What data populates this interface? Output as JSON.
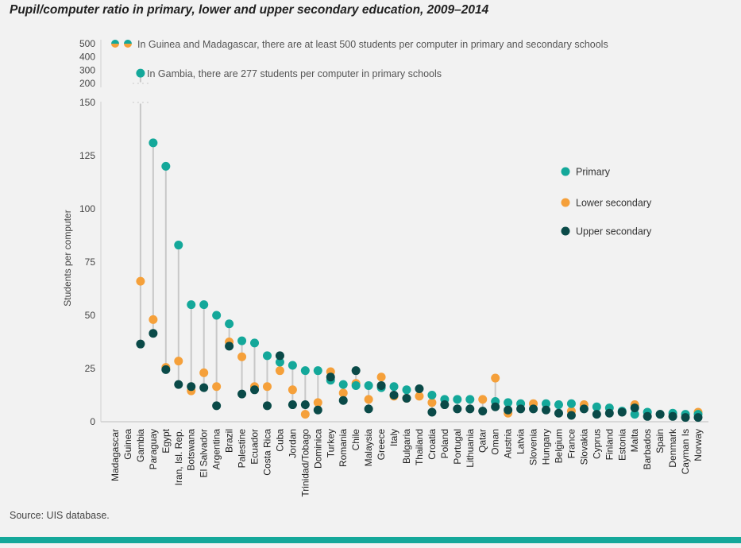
{
  "title": "Pupil/computer ratio in primary, lower and upper secondary education, 2009–2014",
  "source": "Source: UIS database.",
  "chart_data": {
    "type": "scatter",
    "title": "Pupil/computer ratio in primary, lower and upper secondary education, 2009–2014",
    "ylabel": "Students per computer",
    "xlabel": "",
    "ylim": [
      0,
      500
    ],
    "y_axis_break": [
      150,
      200
    ],
    "yticks_lower": [
      0,
      25,
      50,
      75,
      100,
      125,
      150
    ],
    "yticks_upper": [
      200,
      300,
      400,
      500
    ],
    "grid": false,
    "legend_placement": "right",
    "annotations": [
      "In Guinea and Madagascar, there are at least 500 students per computer in primary and secondary schools",
      "In Gambia, there are 277 students per computer in primary schools"
    ],
    "categories": [
      "Madagascar",
      "Guinea",
      "Gambia",
      "Paraguay",
      "Egypt",
      "Iran, Isl. Rep.",
      "Botswana",
      "El Salvador",
      "Argentina",
      "Brazil",
      "Palestine",
      "Ecuador",
      "Costa Rica",
      "Cuba",
      "Jordan",
      "Trinidad/Tobago",
      "Dominica",
      "Turkey",
      "Romania",
      "Chile",
      "Malaysia",
      "Greece",
      "Italy",
      "Bulgaria",
      "Thailand",
      "Croatia",
      "Poland",
      "Portugal",
      "Lithuania",
      "Qatar",
      "Oman",
      "Austria",
      "Latvia",
      "Slovenia",
      "Hungary",
      "Belgium",
      "France",
      "Slovakia",
      "Cyprus",
      "Finland",
      "Estonia",
      "Malta",
      "Barbados",
      "Spain",
      "Denmark",
      "Cayman Is",
      "Norway"
    ],
    "series": [
      {
        "name": "Primary",
        "color": "#14a89a",
        "values": [
          500,
          500,
          277,
          131,
          120,
          83,
          55,
          55,
          50,
          46,
          38,
          37,
          31,
          28,
          26.5,
          24,
          24,
          19.5,
          17.5,
          17,
          17,
          16,
          16.5,
          15,
          null,
          12.5,
          10.5,
          10.5,
          10.5,
          null,
          9.5,
          9,
          8.5,
          null,
          8.5,
          8,
          8.5,
          null,
          7,
          6.5,
          5,
          3.5,
          4.5,
          3.5,
          4,
          3.5,
          3.5
        ]
      },
      {
        "name": "Lower secondary",
        "color": "#f5a03a",
        "values": [
          500,
          500,
          66,
          48,
          25.5,
          28.5,
          14.5,
          23,
          16.5,
          37.5,
          30.5,
          16.5,
          16.5,
          24,
          15,
          3.5,
          9,
          23.5,
          13.5,
          18,
          10.5,
          21,
          12,
          11,
          12,
          9,
          null,
          null,
          null,
          10.5,
          20.5,
          4,
          null,
          8.5,
          null,
          null,
          5,
          8,
          null,
          null,
          null,
          8,
          null,
          null,
          null,
          null,
          4.5
        ]
      },
      {
        "name": "Upper secondary",
        "color": "#0a4a48",
        "values": [
          null,
          null,
          36.5,
          41.5,
          24.5,
          17.5,
          16.5,
          16,
          7.5,
          35.5,
          13,
          15,
          7.5,
          31,
          8,
          8,
          5.5,
          21,
          10,
          24,
          6,
          17,
          12.5,
          11,
          15.5,
          4.5,
          8,
          6,
          6,
          5,
          7,
          5.5,
          6,
          6,
          5.5,
          4,
          3,
          6,
          3.5,
          4,
          4.5,
          6.5,
          2.5,
          3.5,
          2.5,
          2,
          2
        ]
      }
    ]
  }
}
